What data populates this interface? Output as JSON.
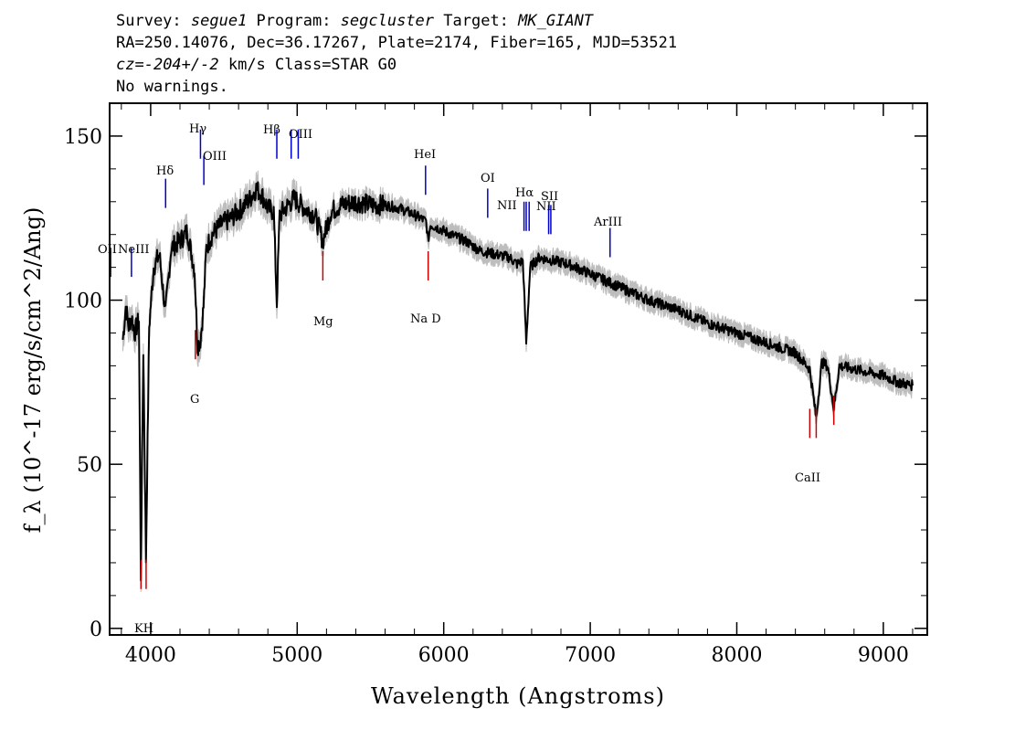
{
  "header": {
    "survey_label": "Survey: ",
    "survey": "segue1",
    "program_label": " Program: ",
    "program": "segcluster",
    "target_label": " Target: ",
    "target": "MK_GIANT",
    "line2": "RA=250.14076, Dec=36.17267, Plate=2174, Fiber=165, MJD=53521",
    "cz_label": "cz=",
    "cz_value": "-204+/-2",
    "cz_rest": " km/s Class=STAR G0",
    "line4": "No warnings."
  },
  "chart_data": {
    "type": "line",
    "xlabel": "Wavelength (Angstroms)",
    "ylabel": "f_λ (10^-17 erg/s/cm^2/Ang)",
    "xlim": [
      3720,
      9300
    ],
    "ylim": [
      -2,
      160
    ],
    "x_ticks": [
      4000,
      5000,
      6000,
      7000,
      8000,
      9000
    ],
    "y_ticks": [
      0,
      50,
      100,
      150
    ],
    "series": [
      {
        "color": "#000000",
        "x": [
          3810,
          3830,
          3850,
          3870,
          3890,
          3920,
          3933,
          3950,
          3968,
          3990,
          4020,
          4060,
          4101,
          4140,
          4200,
          4250,
          4300,
          4320,
          4340,
          4361,
          4380,
          4420,
          4480,
          4550,
          4620,
          4680,
          4720,
          4760,
          4800,
          4840,
          4861,
          4880,
          4920,
          4980,
          5050,
          5120,
          5175,
          5230,
          5300,
          5400,
          5500,
          5600,
          5700,
          5800,
          5880,
          5893,
          5910,
          5960,
          6050,
          6150,
          6250,
          6350,
          6450,
          6500,
          6540,
          6563,
          6590,
          6650,
          6750,
          6850,
          6950,
          7050,
          7200,
          7400,
          7600,
          7800,
          8000,
          8200,
          8400,
          8498,
          8542,
          8580,
          8620,
          8662,
          8700,
          8800,
          8900,
          9000,
          9100,
          9200
        ],
        "values": [
          88,
          98,
          92,
          95,
          90,
          94,
          16,
          85,
          21,
          92,
          110,
          114,
          96,
          116,
          118,
          121,
          109,
          86,
          88,
          98,
          116,
          120,
          123,
          125,
          128,
          131,
          134,
          132,
          128,
          127,
          99,
          126,
          128,
          131,
          128,
          126,
          118,
          127,
          129,
          130,
          129,
          129,
          128,
          126,
          124,
          118,
          123,
          122,
          120,
          118,
          115,
          114,
          113,
          111,
          112,
          87,
          110,
          113,
          112,
          111,
          109,
          107,
          104,
          100,
          97,
          93,
          90,
          87,
          84,
          79,
          64,
          81,
          80,
          67,
          80,
          79,
          78,
          77,
          75,
          74
        ]
      }
    ],
    "emission_lines": [
      {
        "label": "OII",
        "wavelength": 3727,
        "level": 116
      },
      {
        "label": "NeIII",
        "wavelength": 3869,
        "level": 116
      },
      {
        "label": "Hδ",
        "wavelength": 4102,
        "level": 137
      },
      {
        "label": "Hγ",
        "wavelength": 4340,
        "level": 152
      },
      {
        "label": "OIII",
        "wavelength": 4363,
        "level": 144
      },
      {
        "label": "Hβ",
        "wavelength": 4861,
        "level": 152
      },
      {
        "label": "OIII",
        "wavelength": 4959,
        "level": 152
      },
      {
        "label": "OIII",
        "wavelength": 5007,
        "level": 152
      },
      {
        "label": "HeI",
        "wavelength": 5876,
        "level": 141
      },
      {
        "label": "OI",
        "wavelength": 6300,
        "level": 134
      },
      {
        "label": "NII",
        "wavelength": 6548,
        "level": 130
      },
      {
        "label": "Hα",
        "wavelength": 6563,
        "level": 130
      },
      {
        "label": "NII",
        "wavelength": 6583,
        "level": 130
      },
      {
        "label": "SII",
        "wavelength": 6716,
        "level": 129
      },
      {
        "label": "SII",
        "wavelength": 6731,
        "level": 129
      },
      {
        "label": "ArIII",
        "wavelength": 7135,
        "level": 122
      }
    ],
    "absorption_lines": [
      {
        "label": "K",
        "wavelength": 3934,
        "level": 12
      },
      {
        "label": "H",
        "wavelength": 3969,
        "level": 12
      },
      {
        "label": "G",
        "wavelength": 4305,
        "level": 82
      },
      {
        "label": "Mg",
        "wavelength": 5175,
        "level": 106
      },
      {
        "label": "Na",
        "wavelength": 5894,
        "level": 106
      },
      {
        "label": "CaII",
        "wavelength": 8498,
        "level": 58
      },
      {
        "label": "CaII",
        "wavelength": 8542,
        "level": 58
      },
      {
        "label": "CaII",
        "wavelength": 8662,
        "level": 62
      }
    ],
    "absorption_label_text": {
      "kh": "KH",
      "g": "G",
      "mg": "Mg",
      "nad": "Na D",
      "caii": "CaII"
    },
    "emission_label_text": {
      "oii": "OII",
      "neiii": "NeIII",
      "hdelta": "Hδ",
      "hgamma": "Hγ",
      "oiii_a": "OIII",
      "hbeta": "Hβ",
      "oiii_b": "OIII",
      "hei": "HeI",
      "oi": "OI",
      "nii_a": "NII",
      "halpha": "Hα",
      "nii_b": "NII",
      "sii": "SII",
      "ariii": "ArIII"
    },
    "colors": {
      "flux": "#000000",
      "error": "#bdbdbd",
      "emission": "#0000cc",
      "absorption": "#cc0000"
    }
  }
}
